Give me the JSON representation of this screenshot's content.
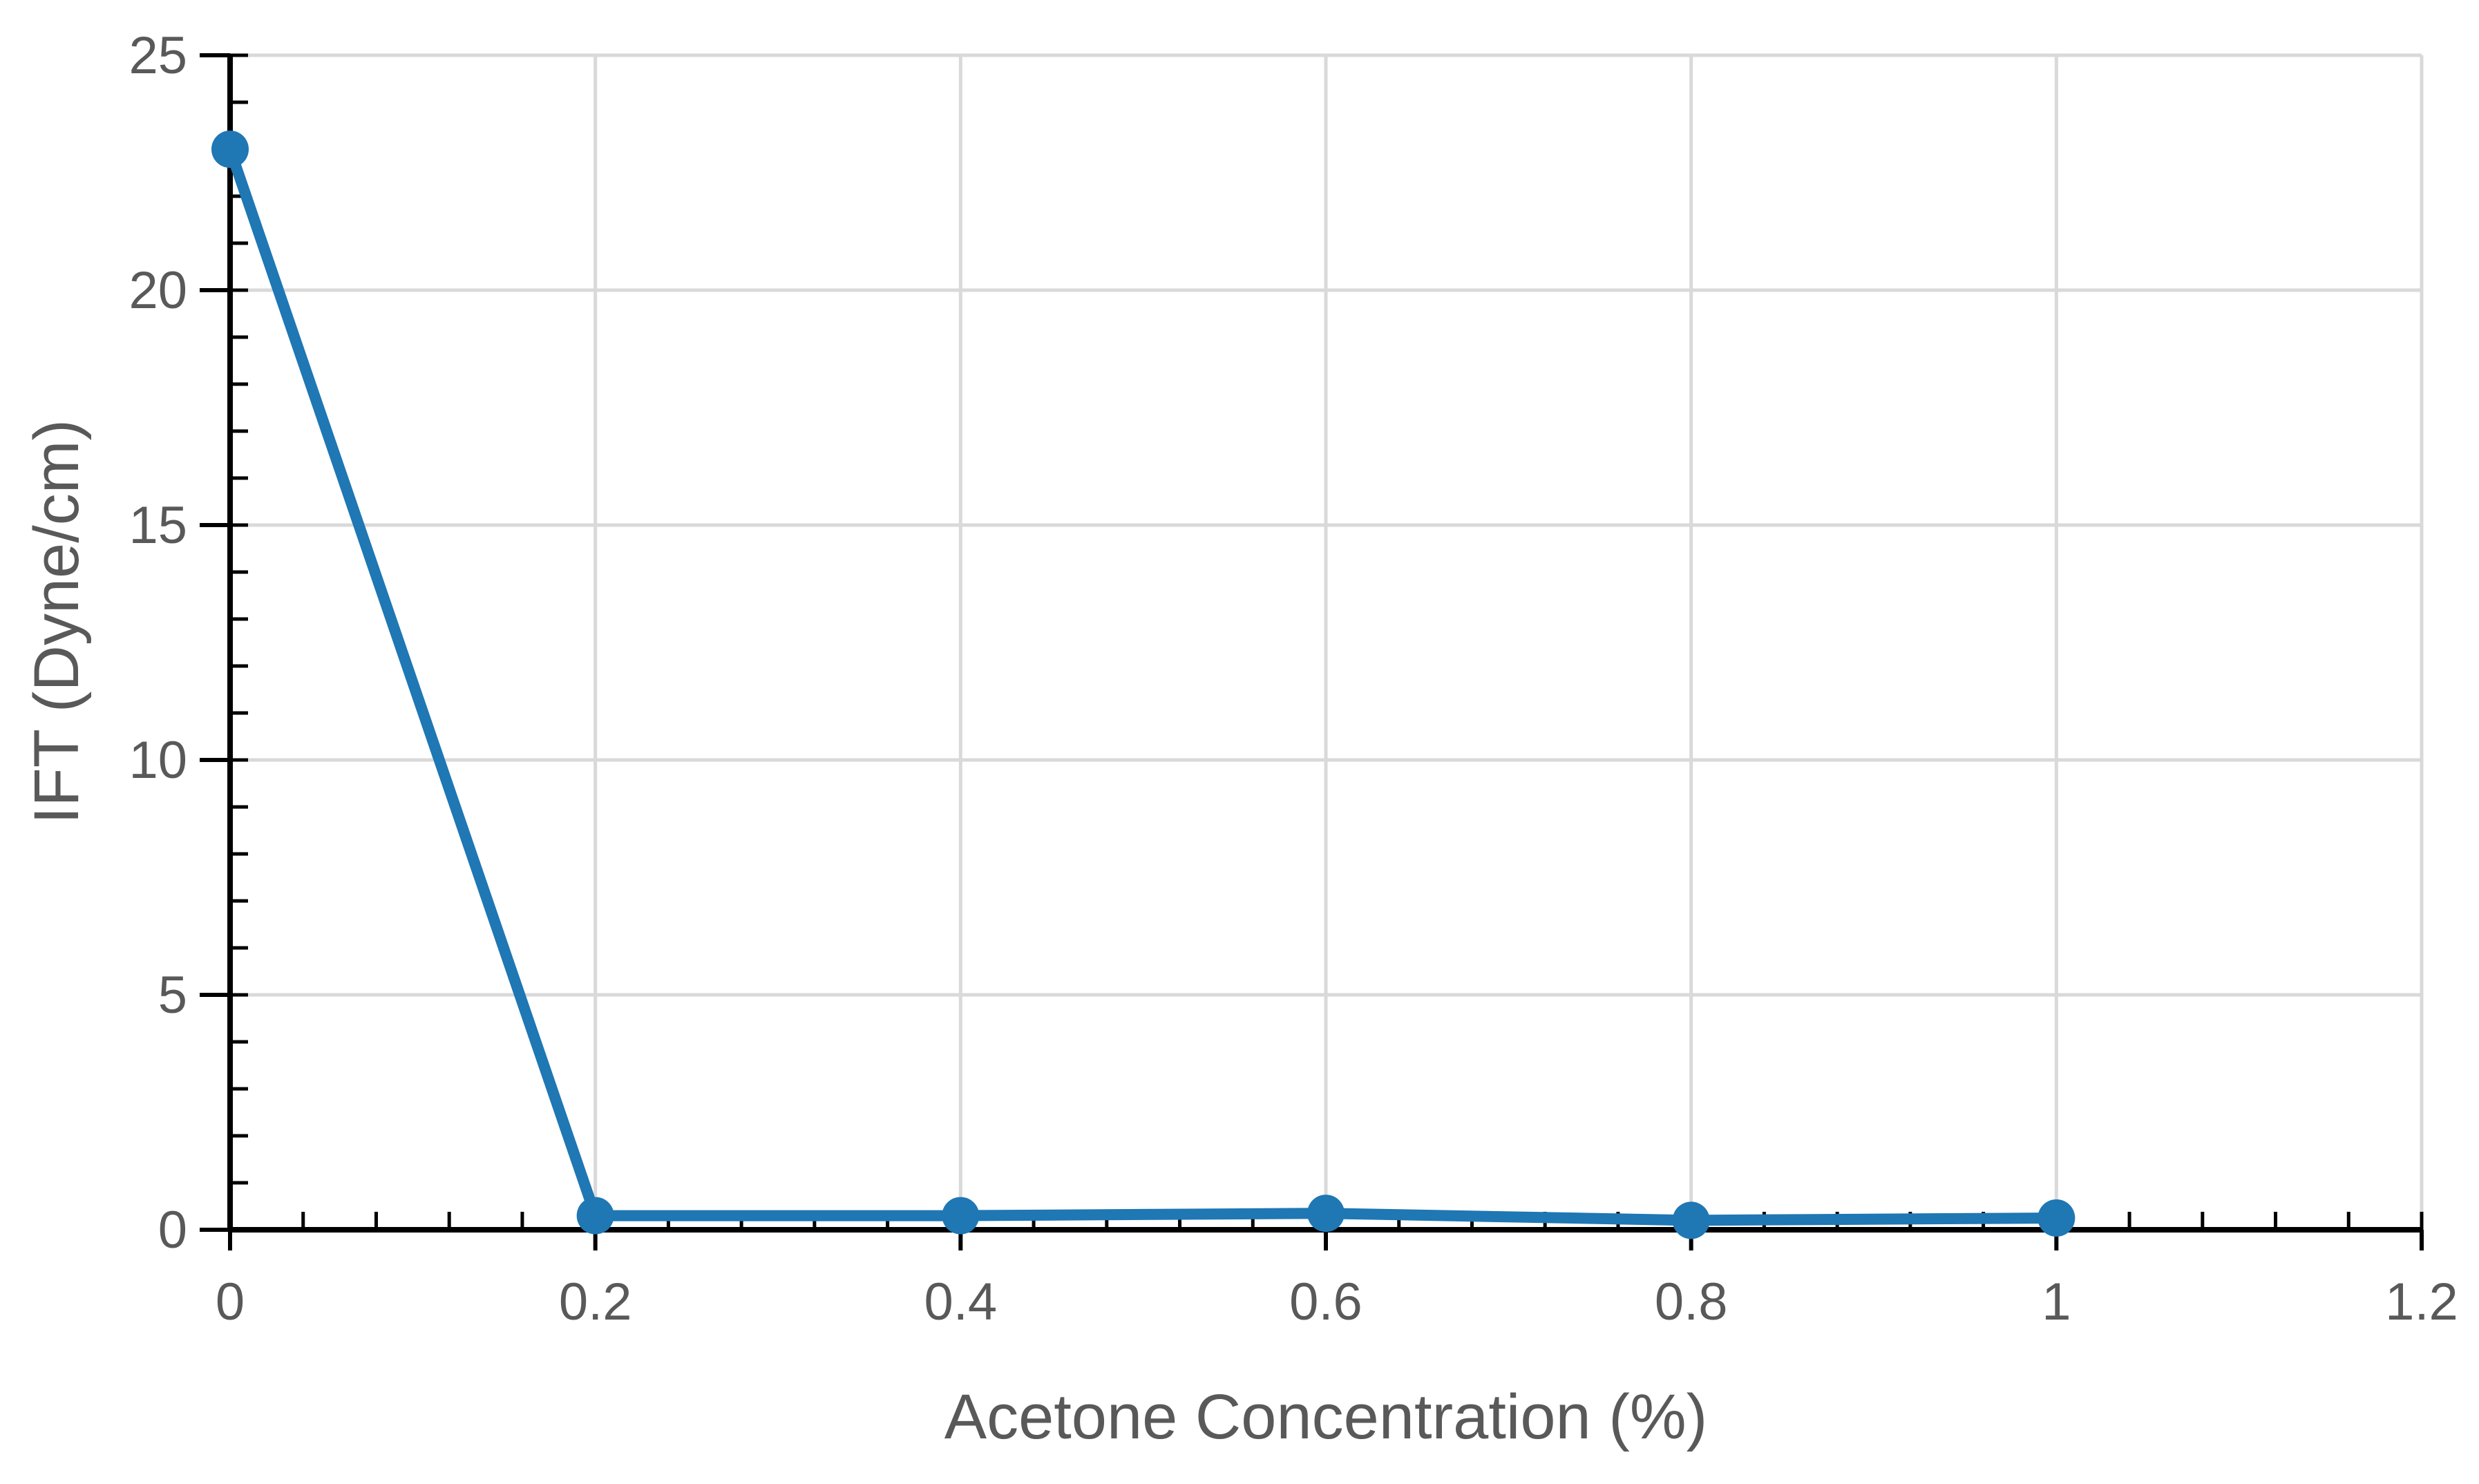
{
  "chart_data": {
    "type": "line",
    "title": "",
    "xlabel": "Acetone Concentration (%)",
    "ylabel": "IFT (Dyne/cm)",
    "xlim": [
      0,
      1.2
    ],
    "ylim": [
      0,
      25
    ],
    "x_ticks": [
      0,
      0.2,
      0.4,
      0.6,
      0.8,
      1,
      1.2
    ],
    "y_ticks": [
      0,
      5,
      10,
      15,
      20,
      25
    ],
    "grid": true,
    "legend": "none",
    "series": [
      {
        "x": [
          0,
          0.2,
          0.4,
          0.6,
          0.8,
          1
        ],
        "values": [
          23,
          0.3,
          0.3,
          0.35,
          0.2,
          0.25
        ],
        "color": "#1f77b4"
      }
    ],
    "axis_color": "#000000",
    "grid_color": "#d9d9d9",
    "text_color": "#595959"
  }
}
